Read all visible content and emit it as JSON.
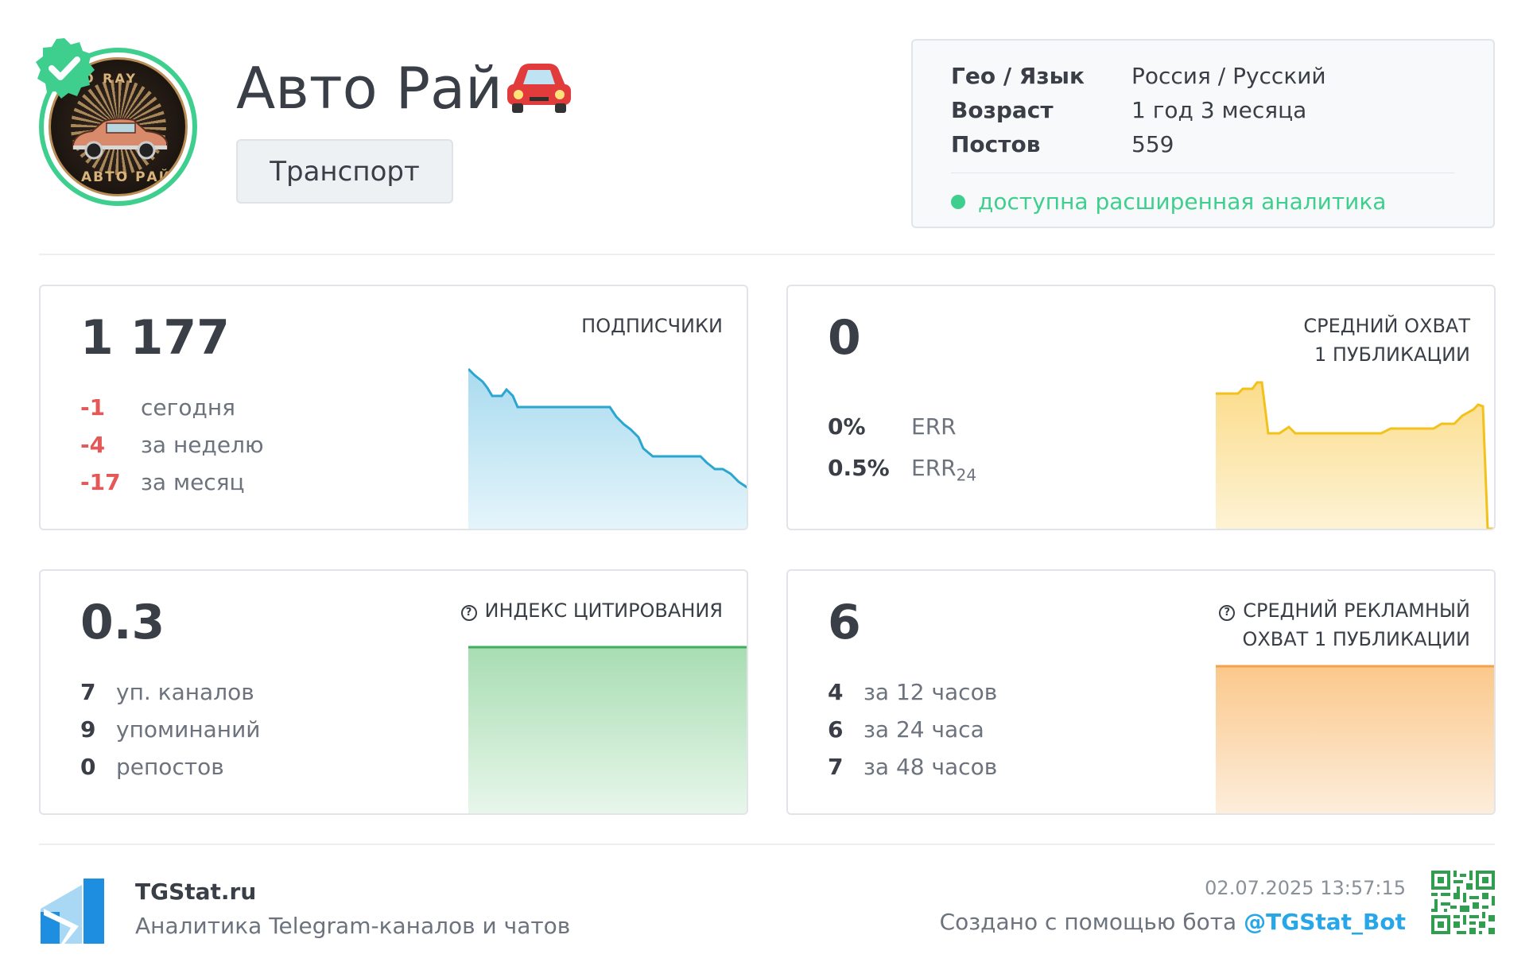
{
  "channel": {
    "title": "Авто Рай",
    "category": "Транспорт",
    "avatar_text_top": "O RAY",
    "avatar_text_bottom": "АВТО РАЙ"
  },
  "info": {
    "rows": [
      {
        "key": "Гео / Язык",
        "value": "Россия / Русский"
      },
      {
        "key": "Возраст",
        "value": "1 год 3 месяца"
      },
      {
        "key": "Постов",
        "value": "559"
      }
    ],
    "analytics": "доступна расширенная аналитика"
  },
  "subscribers": {
    "value": "1 177",
    "label": "ПОДПИСЧИКИ",
    "rows": [
      {
        "num": "-1",
        "text": "сегодня"
      },
      {
        "num": "-4",
        "text": "за неделю"
      },
      {
        "num": "-17",
        "text": "за месяц"
      }
    ]
  },
  "reach": {
    "value": "0",
    "label_line1": "СРЕДНИЙ ОХВАТ",
    "label_line2": "1 ПУБЛИКАЦИИ",
    "rows": [
      {
        "num": "0%",
        "text": "ERR"
      },
      {
        "num": "0.5%",
        "text": "ERR",
        "sub": "24"
      }
    ]
  },
  "citation": {
    "value": "0.3",
    "label": "ИНДЕКС ЦИТИРОВАНИЯ",
    "rows": [
      {
        "num": "7",
        "text": "уп. каналов"
      },
      {
        "num": "9",
        "text": "упоминаний"
      },
      {
        "num": "0",
        "text": "репостов"
      }
    ]
  },
  "ad_reach": {
    "value": "6",
    "label_line1": "СРЕДНИЙ РЕКЛАМНЫЙ",
    "label_line2": "ОХВАТ 1 ПУБЛИКАЦИИ",
    "rows": [
      {
        "num": "4",
        "text": "за 12 часов"
      },
      {
        "num": "6",
        "text": "за 24 часа"
      },
      {
        "num": "7",
        "text": "за 48 часов"
      }
    ]
  },
  "footer": {
    "brand": "TGStat.ru",
    "subtitle": "Аналитика Telegram-каналов и чатов",
    "date": "02.07.2025 13:57:15",
    "made_by": "Создано с помощью бота ",
    "bot": "@TGStat_Bot"
  },
  "colors": {
    "accent_green": "#3ecf8e",
    "negative": "#e45858",
    "subscribers_line": "#2aa6cf",
    "reach_line": "#f2c21b",
    "citation_line": "#3fae5e",
    "ad_reach_line": "#f2a24a",
    "link": "#27a7e7"
  },
  "icons": {
    "verified": "verified-check-icon",
    "title_emoji": "red-car-icon",
    "help": "question-circle-icon",
    "logo": "tgstat-logo-icon",
    "qr": "qr-code-icon"
  }
}
